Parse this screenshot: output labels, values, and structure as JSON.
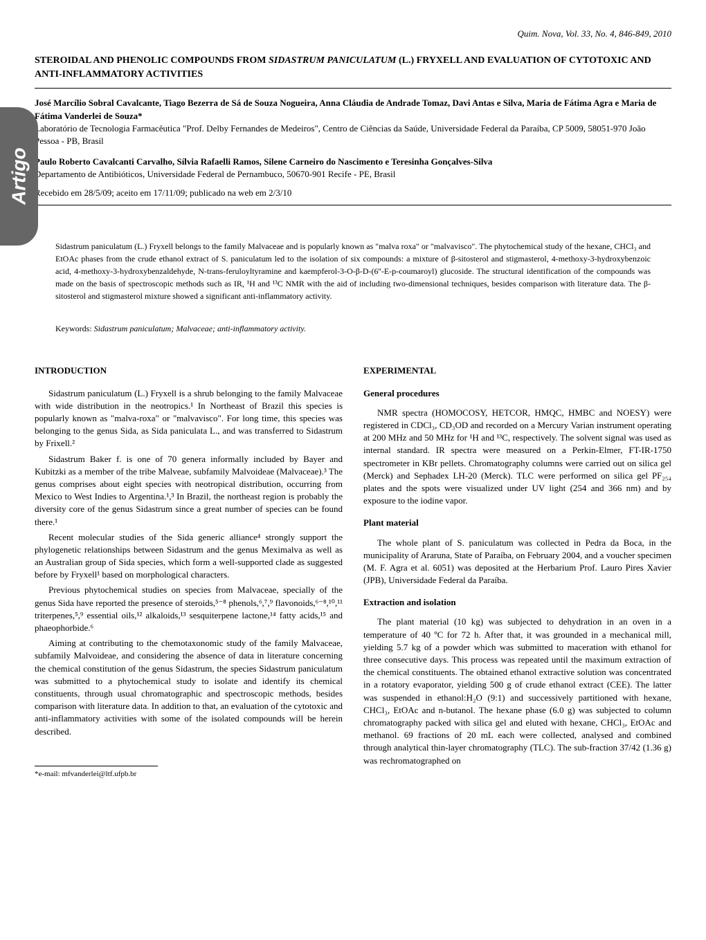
{
  "journal_header": "Quim. Nova, Vol. 33, No. 4, 846-849, 2010",
  "title_part1": "STEROIDAL AND PHENOLIC COMPOUNDS FROM ",
  "title_species": "Sidastrum paniculatum",
  "title_part2": " (L.) FRYXELL AND EVALUATION OF CYTOTOXIC AND ANTI-INFLAMMATORY ACTIVITIES",
  "sidebar_label": "Artigo",
  "authors_block1": "José Marcílio Sobral Cavalcante, Tiago Bezerra de Sá de Souza Nogueira, Anna Cláudia de Andrade Tomaz, Davi Antas e Silva, Maria de Fátima Agra e Maria de Fátima Vanderlei de Souza*",
  "affiliation1": "Laboratório de Tecnologia Farmacêutica \"Prof. Delby Fernandes de Medeiros\", Centro de Ciências da Saúde, Universidade Federal da Paraíba, CP 5009, 58051-970 João Pessoa - PB, Brasil",
  "authors_block2": "Paulo Roberto Cavalcanti Carvalho, Sílvia Rafaelli Ramos, Silene Carneiro do Nascimento e Teresinha Gonçalves-Silva",
  "affiliation2": "Departamento de Antibióticos, Universidade Federal de Pernambuco, 50670-901 Recife - PE, Brasil",
  "dates_line": "Recebido em 28/5/09; aceito em 17/11/09; publicado na web em 2/3/10",
  "abstract_text": "Sidastrum paniculatum (L.) Fryxell belongs to the family Malvaceae and is popularly known as \"malva roxa\" or \"malvavisco\". The phytochemical study of the hexane, CHCl₃ and EtOAc phases from the crude ethanol extract of S. paniculatum led to the isolation of six compounds: a mixture of β-sitosterol and stigmasterol, 4-methoxy-3-hydroxybenzoic acid, 4-methoxy-3-hydroxybenzaldehyde, N-trans-feruloyltyramine and kaempferol-3-O-β-D-(6''-E-p-coumaroyl) glucoside. The structural identification of the compounds was made on the basis of spectroscopic methods such as IR, ¹H and ¹³C NMR with the aid of including two-dimensional techniques, besides comparison with literature data. The β-sitosterol and stigmasterol mixture showed a significant anti-inflammatory activity.",
  "keywords_label": "Keywords: ",
  "keywords_text": "Sidastrum paniculatum; Malvaceae; anti-inflammatory activity.",
  "left_col": {
    "section": "INTRODUCTION",
    "p1": "Sidastrum paniculatum (L.) Fryxell is a shrub belonging to the family Malvaceae with wide distribution in the neotropics.¹ In Northeast of Brazil this species is popularly known as \"malva-roxa\" or \"malvavisco\". For long time, this species was belonging to the genus Sida, as Sida paniculata L., and was transferred to Sidastrum by Frixell.²",
    "p2": "Sidastrum Baker f. is one of 70 genera informally included by Bayer and Kubitzki as a member of the tribe Malveae, subfamily Malvoideae (Malvaceae).³ The genus comprises about eight species with neotropical distribution, occurring from Mexico to West Indies to Argentina.¹,³ In Brazil, the northeast region is probably the diversity core of the genus Sidastrum since a great number of species can be found there.¹",
    "p3": "Recent molecular studies of the Sida generic alliance⁴ strongly support the phylogenetic relationships between Sidastrum and the genus Meximalva as well as an Australian group of Sida species, which form a well-supported clade as suggested before by Fryxell¹ based on morphological characters.",
    "p4": "Previous phytochemical studies on species from Malvaceae, specially of the genus Sida have reported the presence of steroids,⁵⁻⁸ phenols,⁶,⁷,⁹ flavonoids,⁶⁻⁸,¹⁰,¹¹ triterpenes,⁵,⁹ essential oils,¹² alkaloids,¹³ sesquiterpene lactone,¹⁴ fatty acids,¹⁵ and phaeophorbide.⁶",
    "p5": "Aiming at contributing to the chemotaxonomic study of the family Malvaceae, subfamily Malvoideae, and considering the absence of data in literature concerning the chemical constitution of the genus Sidastrum, the species Sidastrum paniculatum was submitted to a phytochemical study to isolate and identify its chemical constituents, through usual chromatographic and spectroscopic methods, besides comparison with literature data. In addition to that, an evaluation of the cytotoxic and anti-inflammatory activities with some of the isolated compounds will be herein described."
  },
  "right_col": {
    "section": "EXPERIMENTAL",
    "sub1": "General procedures",
    "p1": "NMR spectra (HOMOCOSY, HETCOR, HMQC, HMBC and NOESY) were registered in CDCl₃, CD₃OD and recorded on a Mercury Varian instrument operating at 200 MHz and 50 MHz for ¹H and ¹³C, respectively. The solvent signal was used as internal standard. IR spectra were measured on a Perkin-Elmer, FT-IR-1750 spectrometer in KBr pellets. Chromatography columns were carried out on silica gel (Merck) and Sephadex LH-20 (Merck). TLC were performed on silica gel PF₂₅₄ plates and the spots were visualized under UV light (254 and 366 nm) and by exposure to the iodine vapor.",
    "sub2": "Plant material",
    "p2": "The whole plant of S. paniculatum was collected in Pedra da Boca, in the municipality of Araruna, State of Paraíba, on February 2004, and a voucher specimen (M. F. Agra et al. 6051) was deposited at the Herbarium Prof. Lauro Pires Xavier (JPB), Universidade Federal da Paraíba.",
    "sub3": "Extraction and isolation",
    "p3": "The plant material (10 kg) was subjected to dehydration in an oven in a temperature of 40 ºC for 72 h. After that, it was grounded in a mechanical mill, yielding 5.7 kg of a powder which was submitted to maceration with ethanol for three consecutive days. This process was repeated until the maximum extraction of the chemical constituents. The obtained ethanol extractive solution was concentrated in a rotatory evaporator, yielding 500 g of crude ethanol extract (CEE). The latter was suspended in ethanol:H₂O (9:1) and successively partitioned with hexane, CHCl₃, EtOAc and n-butanol. The hexane phase (6.0 g) was subjected to column chromatography packed with silica gel and eluted with hexane, CHCl₃, EtOAc and methanol. 69 fractions of 20 mL each were collected, analysed and combined through analytical thin-layer chromatography (TLC). The sub-fraction 37/42 (1.36 g) was rechromatographed on"
  },
  "footnote_text": "*e-mail: mfvanderlei@ltf.ufpb.br"
}
